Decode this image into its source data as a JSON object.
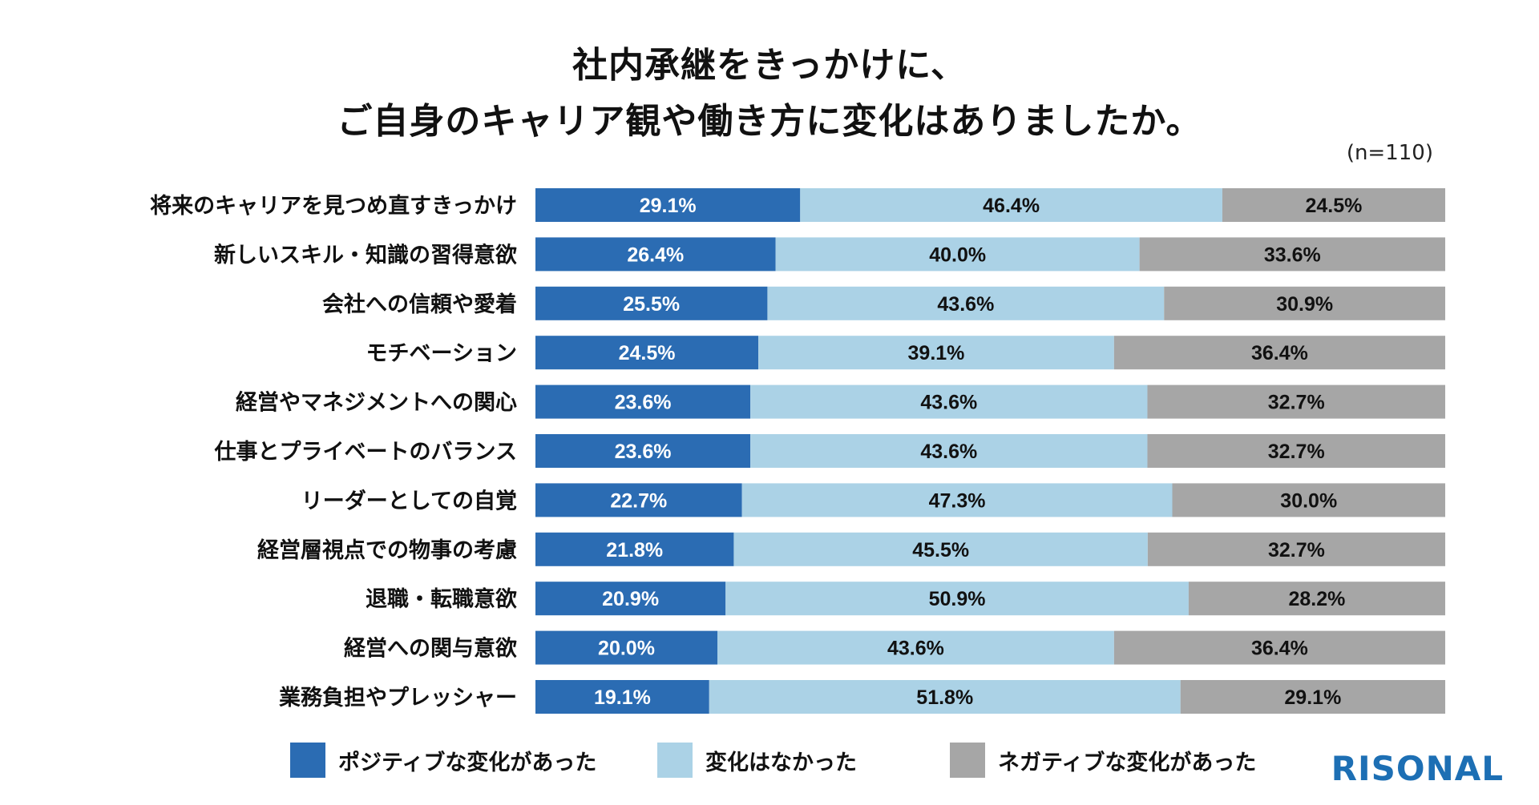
{
  "title_line1": "社内承継をきっかけに、",
  "title_line2": "ご自身のキャリア観や働き方に変化はありましたか。",
  "sample_size": "(n=110)",
  "brand": "RISONAL",
  "colors": {
    "positive": "#2b6cb3",
    "none": "#abd2e6",
    "negative": "#a6a6a6"
  },
  "chart_data": {
    "type": "bar",
    "orientation": "horizontal",
    "stacked": true,
    "percent_of_total": true,
    "categories": [
      "将来のキャリアを見つめ直すきっかけ",
      "新しいスキル・知識の習得意欲",
      "会社への信頼や愛着",
      "モチベーション",
      "経営やマネジメントへの関心",
      "仕事とプライベートのバランス",
      "リーダーとしての自覚",
      "経営層視点での物事の考慮",
      "退職・転職意欲",
      "経営への関与意欲",
      "業務負担やプレッシャー"
    ],
    "series": [
      {
        "name": "ポジティブな変化があった",
        "values": [
          29.1,
          26.4,
          25.5,
          24.5,
          23.6,
          23.6,
          22.7,
          21.8,
          20.9,
          20.0,
          19.1
        ],
        "labels": [
          "29.1%",
          "26.4%",
          "25.5%",
          "24.5%",
          "23.6%",
          "23.6%",
          "22.7%",
          "21.8%",
          "20.9%",
          "20.0%",
          "19.1%"
        ]
      },
      {
        "name": "変化はなかった",
        "values": [
          46.4,
          40.0,
          43.6,
          39.1,
          43.6,
          43.6,
          47.3,
          45.5,
          50.9,
          43.6,
          51.8
        ],
        "labels": [
          "46.4%",
          "40.0%",
          "43.6%",
          "39.1%",
          "43.6%",
          "43.6%",
          "47.3%",
          "45.5%",
          "50.9%",
          "43.6%",
          "51.8%"
        ]
      },
      {
        "name": "ネガティブな変化があった",
        "values": [
          24.5,
          33.6,
          30.9,
          36.4,
          32.7,
          32.7,
          30.0,
          32.7,
          28.2,
          36.4,
          29.1
        ],
        "labels": [
          "24.5%",
          "33.6%",
          "30.9%",
          "36.4%",
          "32.7%",
          "32.7%",
          "30.0%",
          "32.7%",
          "28.2%",
          "36.4%",
          "29.1%"
        ]
      }
    ],
    "xlim": [
      0,
      100
    ],
    "legend": "bottom"
  }
}
